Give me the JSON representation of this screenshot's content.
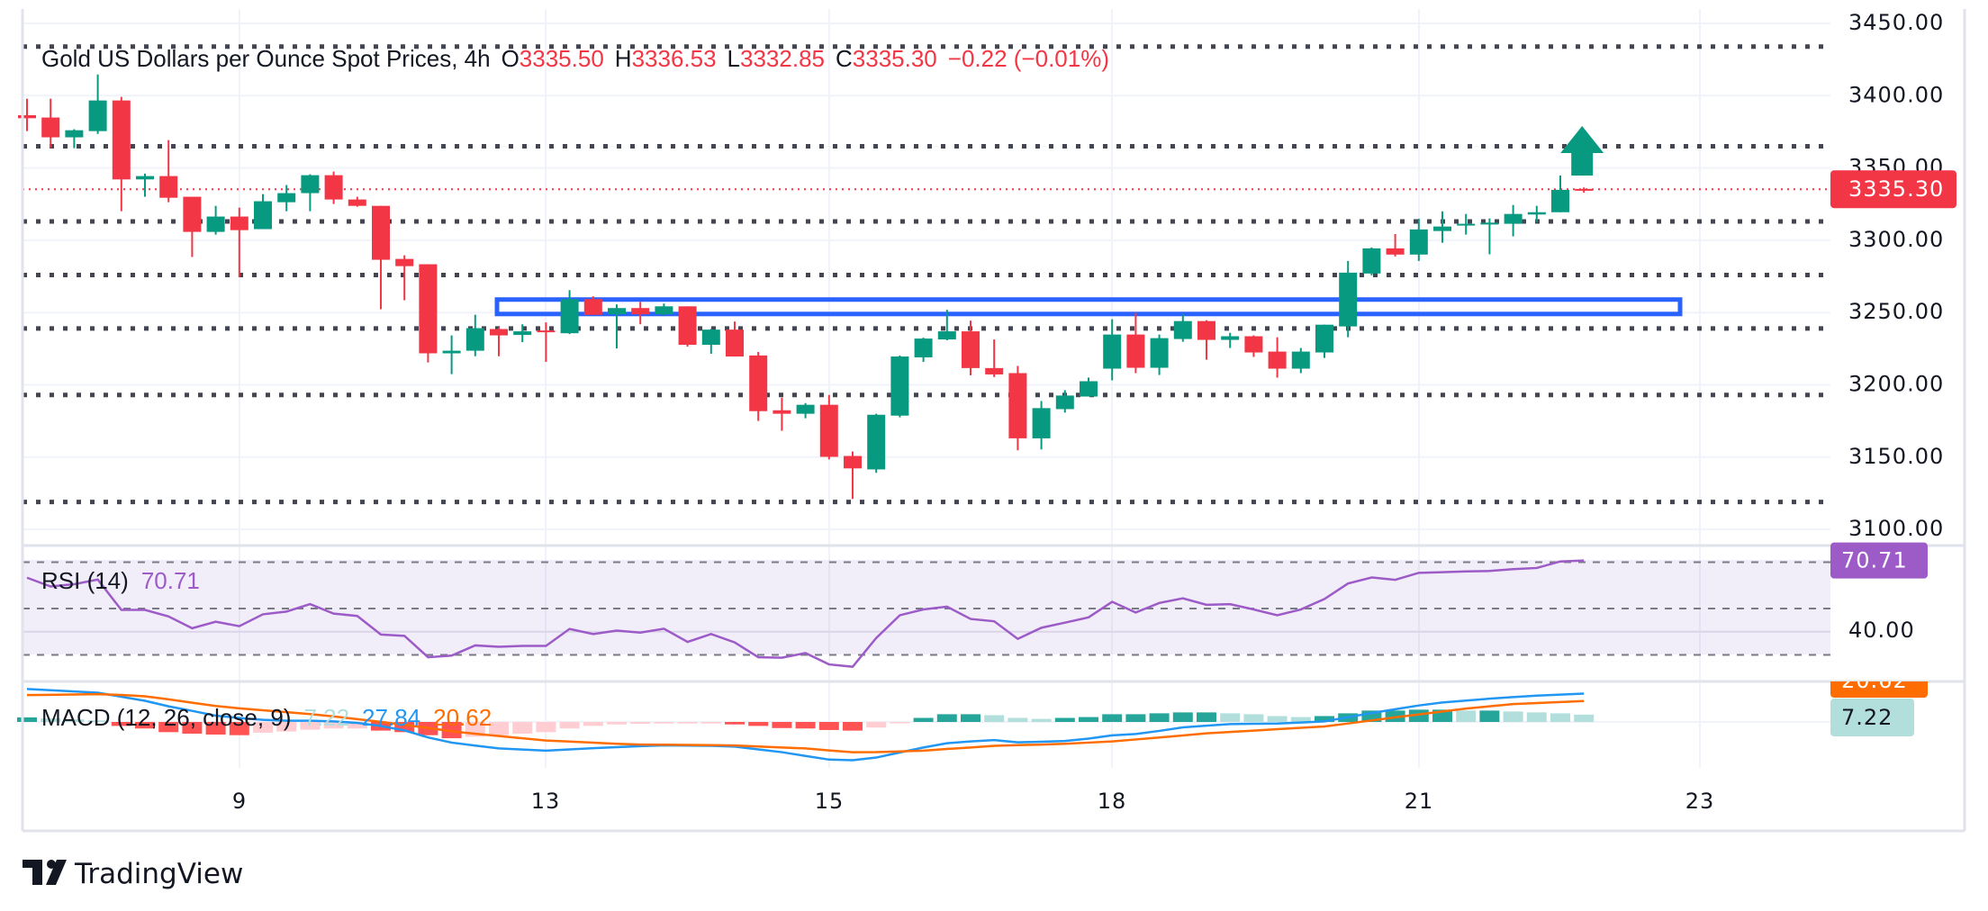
{
  "header": {
    "symbol": "Gold US Dollars per Ounce Spot Prices, 4h",
    "o_label": "O",
    "o": "3335.50",
    "h_label": "H",
    "h": "3336.53",
    "l_label": "L",
    "l": "3332.85",
    "c_label": "C",
    "c": "3335.30",
    "change": "−0.22 (−0.01%)"
  },
  "price_axis": {
    "ticks": [
      "3450.00",
      "3400.00",
      "3350.00",
      "3300.00",
      "3250.00",
      "3200.00",
      "3150.00",
      "3100.00"
    ],
    "current_price": "3335.30"
  },
  "rsi": {
    "label": "RSI (14)",
    "value": "70.71",
    "axis_tick": "40.00"
  },
  "macd": {
    "label": "MACD (12, 26, close, 9)",
    "hist": "7.22",
    "macd": "27.84",
    "signal": "20.62"
  },
  "time_axis": {
    "ticks": [
      "9",
      "13",
      "15",
      "18",
      "21",
      "23"
    ]
  },
  "brand": {
    "name": "TradingView"
  },
  "colors": {
    "up": "#089981",
    "down": "#F23645",
    "level_line": "#434651",
    "zone": "#2962FF",
    "rsi": "#9C5BC7",
    "macd": "#2196F3",
    "signal": "#FF6D00",
    "hist_up_strong": "#26A69A",
    "hist_up_weak": "#B2DFDB",
    "hist_down_strong": "#FF5252",
    "hist_down_weak": "#FFCDD2"
  },
  "chart_data": {
    "type": "candlestick",
    "interval": "4h",
    "ylim": [
      3100,
      3450
    ],
    "grid": true,
    "ohlc": [
      [
        3386.5,
        3397.9,
        3375.5,
        3384.4
      ],
      [
        3384.9,
        3397.9,
        3363.7,
        3371.2
      ],
      [
        3371.2,
        3376.8,
        3363.7,
        3376.1
      ],
      [
        3375.5,
        3414.7,
        3373.6,
        3396.7
      ],
      [
        3396.7,
        3399.2,
        3320.1,
        3342.1
      ],
      [
        3342.1,
        3346.1,
        3330.1,
        3344.4
      ],
      [
        3344.4,
        3369.3,
        3326.3,
        3329.4
      ],
      [
        3330.1,
        3330.1,
        3288.4,
        3305.8
      ],
      [
        3305.8,
        3323.8,
        3303.9,
        3316.4
      ],
      [
        3316.4,
        3322.6,
        3274.5,
        3307.0
      ],
      [
        3307.7,
        3331.9,
        3307.7,
        3327.0
      ],
      [
        3326.3,
        3338.2,
        3320.1,
        3332.6
      ],
      [
        3332.6,
        3345.6,
        3320.1,
        3345.0
      ],
      [
        3345.0,
        3347.5,
        3325.1,
        3328.2
      ],
      [
        3328.2,
        3330.1,
        3323.2,
        3323.8
      ],
      [
        3323.8,
        3323.8,
        3252.3,
        3286.5
      ],
      [
        3287.1,
        3289.6,
        3258.5,
        3282.1
      ],
      [
        3283.4,
        3283.4,
        3215.5,
        3221.8
      ],
      [
        3221.8,
        3234.2,
        3207.4,
        3223.6
      ],
      [
        3223.6,
        3248.5,
        3219.8,
        3239.2
      ],
      [
        3238.6,
        3239.8,
        3219.8,
        3234.2
      ],
      [
        3234.5,
        3241.9,
        3229.5,
        3237.0
      ],
      [
        3237.6,
        3243.2,
        3215.9,
        3236.8
      ],
      [
        3235.7,
        3265.5,
        3235.1,
        3259.3
      ],
      [
        3259.3,
        3261.2,
        3248.4,
        3248.4
      ],
      [
        3248.8,
        3255.6,
        3225.2,
        3253.1
      ],
      [
        3253.1,
        3257.4,
        3241.9,
        3248.8
      ],
      [
        3248.8,
        3256.2,
        3248.1,
        3254.3
      ],
      [
        3254.3,
        3254.3,
        3226.4,
        3227.7
      ],
      [
        3227.7,
        3238.8,
        3221.5,
        3238.2
      ],
      [
        3238.2,
        3243.8,
        3219.6,
        3219.6
      ],
      [
        3220.3,
        3222.7,
        3175.0,
        3181.8
      ],
      [
        3182.4,
        3191.1,
        3168.2,
        3180.0
      ],
      [
        3180.0,
        3187.4,
        3176.9,
        3186.2
      ],
      [
        3186.2,
        3193.0,
        3148.4,
        3150.2
      ],
      [
        3150.8,
        3153.9,
        3121.1,
        3142.2
      ],
      [
        3141.5,
        3180.0,
        3139.1,
        3179.3
      ],
      [
        3178.7,
        3220.3,
        3177.5,
        3219.6
      ],
      [
        3219.0,
        3232.6,
        3215.9,
        3232.0
      ],
      [
        3231.4,
        3251.9,
        3230.8,
        3237.0
      ],
      [
        3237.0,
        3244.4,
        3206.6,
        3211.6
      ],
      [
        3211.6,
        3231.4,
        3205.4,
        3207.2
      ],
      [
        3208.1,
        3213.1,
        3154.7,
        3163.0
      ],
      [
        3163.0,
        3188.8,
        3155.3,
        3183.9
      ],
      [
        3183.2,
        3196.3,
        3180.8,
        3192.6
      ],
      [
        3191.9,
        3205.0,
        3191.9,
        3202.5
      ],
      [
        3211.2,
        3245.4,
        3203.1,
        3234.8
      ],
      [
        3234.8,
        3249.7,
        3208.1,
        3211.8
      ],
      [
        3211.8,
        3234.8,
        3206.8,
        3232.3
      ],
      [
        3231.7,
        3249.1,
        3229.8,
        3244.1
      ],
      [
        3244.1,
        3244.7,
        3217.4,
        3231.1
      ],
      [
        3231.1,
        3236.0,
        3225.5,
        3233.6
      ],
      [
        3233.6,
        3234.2,
        3219.3,
        3222.4
      ],
      [
        3223.0,
        3232.9,
        3205.0,
        3211.2
      ],
      [
        3211.2,
        3225.5,
        3208.1,
        3223.0
      ],
      [
        3222.4,
        3241.6,
        3218.6,
        3241.6
      ],
      [
        3240.4,
        3285.7,
        3232.9,
        3277.6
      ],
      [
        3277.0,
        3295.0,
        3275.8,
        3294.4
      ],
      [
        3294.4,
        3304.3,
        3288.8,
        3290.1
      ],
      [
        3290.1,
        3314.9,
        3285.7,
        3307.5
      ],
      [
        3306.4,
        3320.0,
        3298.3,
        3309.5
      ],
      [
        3310.3,
        3318.2,
        3303.9,
        3311.4
      ],
      [
        3310.9,
        3315.1,
        3290.3,
        3312.2
      ],
      [
        3311.4,
        3324.4,
        3302.7,
        3318.2
      ],
      [
        3317.8,
        3323.8,
        3312.6,
        3319.4
      ],
      [
        3319.4,
        3344.8,
        3319.4,
        3334.9
      ],
      [
        3335.5,
        3336.53,
        3332.85,
        3335.3
      ]
    ],
    "levels": [
      3434,
      3365,
      3313,
      3276,
      3239,
      3193,
      3119
    ],
    "zone": [
      3249,
      3259
    ],
    "arrow": "up",
    "rsi": [
      63.3,
      59.5,
      60.5,
      62.5,
      49.4,
      49.4,
      46.6,
      41.5,
      44.3,
      42.4,
      47.5,
      48.7,
      51.9,
      47.8,
      46.8,
      38.8,
      38.2,
      29.0,
      29.7,
      34.1,
      33.5,
      33.9,
      33.9,
      41.2,
      39.0,
      40.5,
      39.6,
      41.3,
      35.6,
      39.0,
      35.4,
      29.0,
      28.8,
      30.8,
      25.9,
      24.9,
      37.3,
      47.1,
      49.6,
      50.8,
      45.5,
      44.5,
      36.9,
      41.7,
      43.9,
      46.2,
      52.9,
      48.3,
      52.4,
      54.4,
      51.6,
      51.9,
      49.6,
      47.1,
      49.6,
      54.1,
      60.8,
      63.4,
      62.4,
      65.4,
      65.7,
      66.0,
      66.2,
      67.0,
      67.5,
      70.3,
      70.71
    ],
    "rsi_bands": [
      70,
      50,
      30
    ],
    "macd_line": [
      32.4,
      31.2,
      30.0,
      28.8,
      24.8,
      20.8,
      15.4,
      10.9,
      6.2,
      3.9,
      2.1,
      1.2,
      1.2,
      0.5,
      -0.9,
      -4.0,
      -8.3,
      -15.2,
      -20.3,
      -23.2,
      -26.0,
      -27.1,
      -28.2,
      -27.0,
      -25.8,
      -24.8,
      -23.8,
      -23.0,
      -23.2,
      -23.4,
      -24.2,
      -27.0,
      -29.7,
      -33.4,
      -37.0,
      -37.6,
      -35.0,
      -30.0,
      -25.1,
      -20.9,
      -19.1,
      -17.8,
      -20.0,
      -19.5,
      -18.7,
      -16.4,
      -13.2,
      -11.8,
      -8.8,
      -5.3,
      -3.7,
      -2.1,
      -1.8,
      -1.5,
      -0.5,
      0.6,
      4.7,
      8.8,
      12.5,
      16.2,
      19.1,
      21.0,
      22.9,
      24.4,
      25.9,
      26.9,
      27.84
    ],
    "signal_line": [
      26.4,
      26.7,
      27.0,
      27.3,
      26.6,
      25.2,
      22.2,
      18.9,
      15.7,
      13.4,
      11.5,
      9.6,
      7.7,
      5.4,
      2.8,
      0.1,
      -2.9,
      -5.9,
      -9.1,
      -11.6,
      -13.8,
      -16.0,
      -18.2,
      -19.3,
      -20.4,
      -21.5,
      -22.2,
      -22.4,
      -22.6,
      -22.8,
      -23.1,
      -24.1,
      -25.1,
      -26.0,
      -28.0,
      -29.8,
      -29.7,
      -29.0,
      -28.2,
      -26.6,
      -25.1,
      -23.5,
      -22.8,
      -22.2,
      -21.5,
      -20.3,
      -19.1,
      -17.2,
      -15.3,
      -13.3,
      -11.2,
      -9.8,
      -8.5,
      -7.1,
      -5.8,
      -4.4,
      -1.5,
      1.5,
      4.5,
      7.4,
      10.3,
      13.2,
      15.4,
      17.6,
      18.6,
      19.6,
      20.62
    ],
    "histogram": [
      4.5,
      3.5,
      2.5,
      1.5,
      -3.9,
      -6.4,
      -10,
      -11.5,
      -12.4,
      -13,
      -10.6,
      -9.4,
      -7.6,
      -6.4,
      -6.4,
      -8.5,
      -10,
      -13,
      -16,
      -14.5,
      -13,
      -11.5,
      -10,
      -6.4,
      -3.9,
      -2.4,
      -1.8,
      -1.5,
      -1.5,
      -1.5,
      -2.4,
      -3.9,
      -6,
      -6.4,
      -7.9,
      -8.5,
      -5.5,
      -0.6,
      4,
      7.6,
      7.6,
      6.7,
      4,
      3,
      4,
      4.8,
      7.6,
      7.6,
      8.5,
      9.4,
      9.4,
      8.5,
      7.6,
      5.8,
      4.8,
      5.8,
      8.5,
      11.2,
      11.2,
      12.1,
      12.1,
      11.2,
      11.2,
      10.3,
      9.4,
      8.5,
      7.22
    ]
  }
}
